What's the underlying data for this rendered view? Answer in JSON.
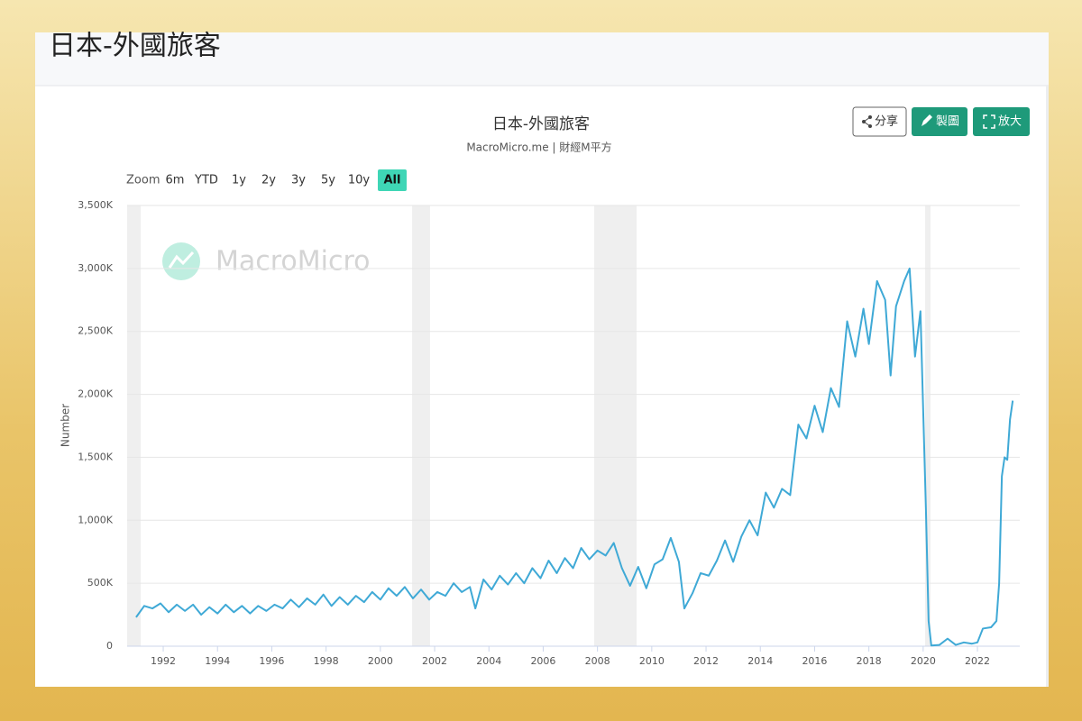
{
  "header": {
    "title": "日本-外國旅客"
  },
  "toolbar": {
    "buttons": [
      "分享",
      "製圖",
      "放大"
    ]
  },
  "zoom": {
    "label": "Zoom",
    "options": [
      "6m",
      "YTD",
      "1y",
      "2y",
      "3y",
      "5y",
      "10y",
      "All"
    ],
    "selected": 7
  },
  "chart_data": {
    "type": "line",
    "title": "日本-外國旅客",
    "subtitle": "MacroMicro.me | 財經M平方",
    "watermark": "MacroMicro",
    "ylabel": "Number",
    "color": "#3fa9d6",
    "grid": true,
    "xlim": [
      1990.67,
      2023.56
    ],
    "xticks": [
      1992,
      1994,
      1996,
      1998,
      2000,
      2002,
      2004,
      2006,
      2008,
      2010,
      2012,
      2014,
      2016,
      2018,
      2020,
      2022
    ],
    "ylim": [
      0,
      3500000
    ],
    "yticks": [
      0,
      {
        "value": 500000,
        "label": "500K"
      },
      {
        "value": 1000000,
        "label": "1,000K"
      },
      {
        "value": 1500000,
        "label": "1,500K"
      },
      {
        "value": 2000000,
        "label": "2,000K"
      },
      {
        "value": 2500000,
        "label": "2,500K"
      },
      {
        "value": 3000000,
        "label": "3,000K"
      },
      {
        "value": 3500000,
        "label": "3,500K"
      }
    ],
    "shaded_periods": [
      [
        1990.67,
        1991.17
      ],
      [
        2001.17,
        2001.83
      ],
      [
        2007.88,
        2009.44
      ],
      [
        2020.07,
        2020.27
      ]
    ],
    "x": [
      1991.0,
      1991.3,
      1991.6,
      1991.9,
      1992.2,
      1992.5,
      1992.8,
      1993.1,
      1993.4,
      1993.7,
      1994.0,
      1994.3,
      1994.6,
      1994.9,
      1995.2,
      1995.5,
      1995.8,
      1996.1,
      1996.4,
      1996.7,
      1997.0,
      1997.3,
      1997.6,
      1997.9,
      1998.2,
      1998.5,
      1998.8,
      1999.1,
      1999.4,
      1999.7,
      2000.0,
      2000.3,
      2000.6,
      2000.9,
      2001.2,
      2001.5,
      2001.8,
      2002.1,
      2002.4,
      2002.7,
      2003.0,
      2003.3,
      2003.5,
      2003.8,
      2004.1,
      2004.4,
      2004.7,
      2005.0,
      2005.3,
      2005.6,
      2005.9,
      2006.2,
      2006.5,
      2006.8,
      2007.1,
      2007.4,
      2007.7,
      2008.0,
      2008.3,
      2008.6,
      2008.9,
      2009.2,
      2009.5,
      2009.8,
      2010.1,
      2010.4,
      2010.7,
      2011.0,
      2011.2,
      2011.5,
      2011.8,
      2012.1,
      2012.4,
      2012.7,
      2013.0,
      2013.3,
      2013.6,
      2013.9,
      2014.2,
      2014.5,
      2014.8,
      2015.1,
      2015.4,
      2015.7,
      2016.0,
      2016.3,
      2016.6,
      2016.9,
      2017.2,
      2017.5,
      2017.8,
      2018.0,
      2018.3,
      2018.6,
      2018.8,
      2019.0,
      2019.3,
      2019.5,
      2019.7,
      2019.9,
      2020.1,
      2020.2,
      2020.3,
      2020.6,
      2020.9,
      2021.2,
      2021.5,
      2021.8,
      2022.0,
      2022.2,
      2022.5,
      2022.7,
      2022.8,
      2022.9,
      2023.0,
      2023.1,
      2023.2,
      2023.3
    ],
    "values": [
      230000,
      320000,
      300000,
      340000,
      270000,
      330000,
      280000,
      330000,
      250000,
      310000,
      260000,
      330000,
      270000,
      320000,
      260000,
      320000,
      280000,
      330000,
      300000,
      370000,
      310000,
      380000,
      330000,
      410000,
      320000,
      390000,
      330000,
      400000,
      350000,
      430000,
      370000,
      460000,
      400000,
      470000,
      380000,
      450000,
      370000,
      430000,
      400000,
      500000,
      430000,
      470000,
      300000,
      530000,
      450000,
      560000,
      490000,
      580000,
      500000,
      620000,
      540000,
      680000,
      580000,
      700000,
      620000,
      780000,
      690000,
      760000,
      720000,
      820000,
      620000,
      480000,
      630000,
      460000,
      650000,
      690000,
      860000,
      670000,
      300000,
      420000,
      580000,
      560000,
      680000,
      840000,
      670000,
      870000,
      1000000,
      880000,
      1220000,
      1100000,
      1250000,
      1200000,
      1760000,
      1650000,
      1910000,
      1700000,
      2050000,
      1900000,
      2580000,
      2300000,
      2680000,
      2400000,
      2900000,
      2750000,
      2150000,
      2700000,
      2900000,
      3000000,
      2300000,
      2660000,
      1100000,
      200000,
      5000,
      10000,
      60000,
      10000,
      30000,
      20000,
      30000,
      140000,
      150000,
      200000,
      500000,
      1350000,
      1500000,
      1480000,
      1800000,
      1950000
    ]
  }
}
